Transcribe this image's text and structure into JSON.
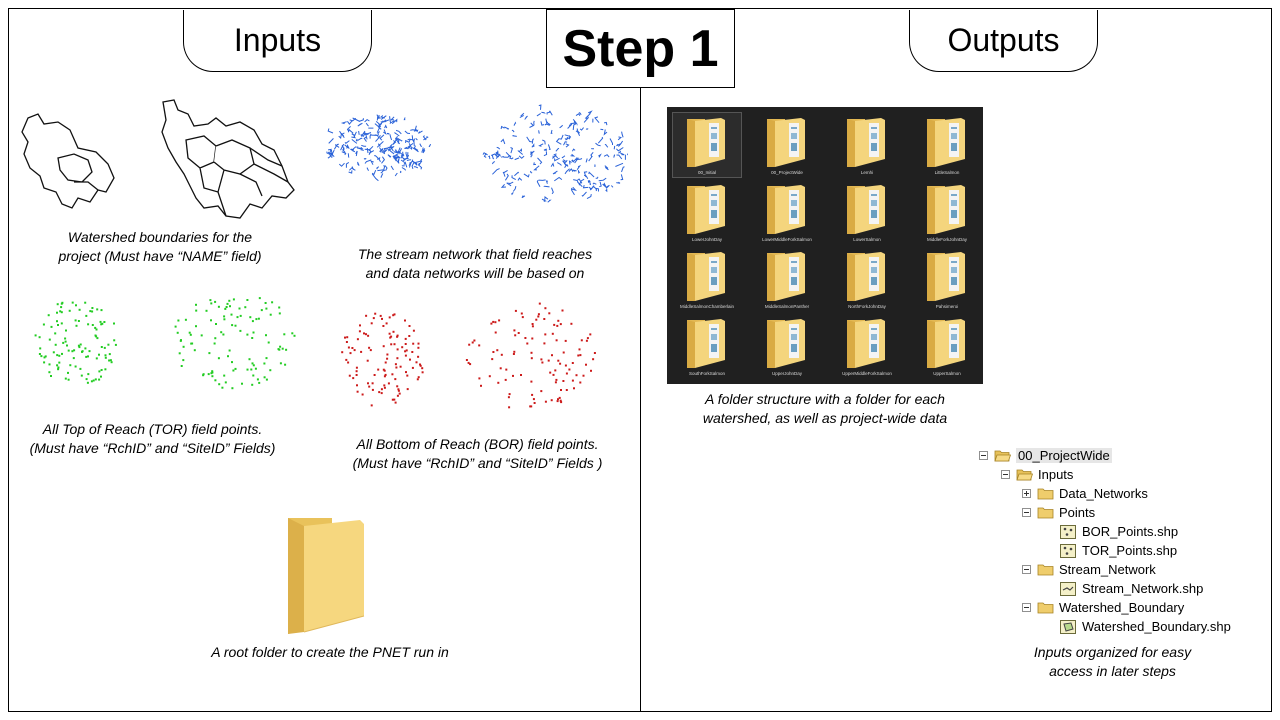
{
  "header": {
    "step_title": "Step 1",
    "inputs_tab": "Inputs",
    "outputs_tab": "Outputs"
  },
  "inputs": {
    "watershed_caption_1": "Watershed boundaries for the",
    "watershed_caption_2": "project (Must have “NAME” field)",
    "stream_caption_1": "The stream network that field reaches",
    "stream_caption_2": "and data networks will be based on",
    "tor_caption_1": "All Top of Reach (TOR) field points.",
    "tor_caption_2": "(Must have “RchID” and “SiteID” Fields)",
    "bor_caption_1": "All Bottom of Reach (BOR) field points.",
    "bor_caption_2": "(Must have “RchID” and “SiteID” Fields )",
    "root_caption": "A root folder to create the PNET run in",
    "colors": {
      "watershed": "#111111",
      "stream": "#2a62d8",
      "tor": "#22cc22",
      "bor": "#cc1a1a",
      "folder": "#f2cf6b"
    }
  },
  "outputs": {
    "folders": [
      "00_Initial",
      "00_ProjectWide",
      "Lemhi",
      "LittleSalmon",
      "LowerJohnDay",
      "LowerMiddleForkSalmon",
      "LowerSalmon",
      "MiddleForkJohnDay",
      "MiddleSalmonChamberlain",
      "MiddleSalmonPanther",
      "NorthForkJohnDay",
      "Pahsimeroi",
      "SouthForkSalmon",
      "UpperJohnDay",
      "UpperMiddleForkSalmon",
      "UpperSalmon"
    ],
    "folder_caption_1": "A folder structure with a folder for each",
    "folder_caption_2": "watershed, as well as project-wide data",
    "tree": {
      "root": "00_ProjectWide",
      "inputs": "Inputs",
      "data_networks": "Data_Networks",
      "points": "Points",
      "bor_points": "BOR_Points.shp",
      "tor_points": "TOR_Points.shp",
      "stream_network": "Stream_Network",
      "stream_network_shp": "Stream_Network.shp",
      "watershed_boundary": "Watershed_Boundary",
      "watershed_boundary_shp": "Watershed_Boundary.shp"
    },
    "tree_caption_1": "Inputs organized for easy",
    "tree_caption_2": "access in later steps"
  }
}
